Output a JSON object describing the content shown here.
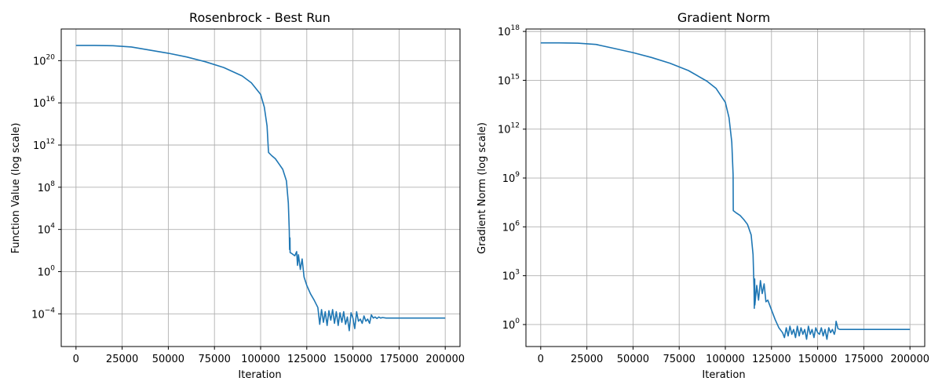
{
  "chart_data": [
    {
      "type": "line",
      "title": "Rosenbrock - Best Run",
      "xlabel": "Iteration",
      "ylabel": "Function Value (log scale)",
      "yscale": "log",
      "grid": true,
      "xlim": [
        -8000,
        208000
      ],
      "ylim_log10": [
        -7.1,
        23.0
      ],
      "xticks": [
        {
          "value": 0,
          "label": "0"
        },
        {
          "value": 25000,
          "label": "25000"
        },
        {
          "value": 50000,
          "label": "50000"
        },
        {
          "value": 75000,
          "label": "75000"
        },
        {
          "value": 100000,
          "label": "100000"
        },
        {
          "value": 125000,
          "label": "125000"
        },
        {
          "value": 150000,
          "label": "150000"
        },
        {
          "value": 175000,
          "label": "175000"
        },
        {
          "value": 200000,
          "label": "200000"
        }
      ],
      "yticks": [
        {
          "exp": 20,
          "base": "10",
          "sup": "20"
        },
        {
          "exp": 16,
          "base": "10",
          "sup": "16"
        },
        {
          "exp": 12,
          "base": "10",
          "sup": "12"
        },
        {
          "exp": 8,
          "base": "10",
          "sup": "8"
        },
        {
          "exp": 4,
          "base": "10",
          "sup": "4"
        },
        {
          "exp": 0,
          "base": "10",
          "sup": "0"
        },
        {
          "exp": -4,
          "base": "10",
          "sup": "−4"
        }
      ],
      "series": [
        {
          "x": [
            0,
            10000,
            20000,
            30000,
            40000,
            50000,
            60000,
            70000,
            80000,
            90000,
            95000,
            100000,
            102000,
            103500,
            104200,
            104300,
            106000,
            108000,
            110000,
            112000,
            114000,
            115000,
            115500,
            115700,
            115900,
            116000,
            117000,
            118500,
            119500,
            120000,
            120500,
            121500,
            122500,
            123500,
            125000,
            127000,
            129000,
            131000,
            132000,
            133000,
            134000,
            135000,
            136000,
            137000,
            138000,
            139000,
            140000,
            141000,
            142000,
            143000,
            144000,
            145000,
            146000,
            147000,
            148000,
            149000,
            150000,
            151000,
            152000,
            153000,
            154000,
            155000,
            156000,
            157000,
            158000,
            159000,
            160000,
            161000,
            162000,
            163000,
            164000,
            165000,
            166000,
            168000,
            170000,
            175000,
            180000,
            190000,
            200000
          ],
          "y_log10": [
            21.45,
            21.45,
            21.42,
            21.3,
            21.0,
            20.7,
            20.35,
            19.9,
            19.35,
            18.55,
            17.9,
            16.8,
            15.6,
            13.8,
            11.5,
            11.3,
            11.0,
            10.7,
            10.2,
            9.7,
            8.6,
            6.5,
            3.9,
            2.1,
            3.2,
            1.8,
            1.7,
            1.5,
            1.9,
            0.6,
            1.6,
            0.2,
            1.2,
            -0.5,
            -1.3,
            -2.1,
            -2.7,
            -3.4,
            -5.0,
            -3.6,
            -4.8,
            -3.8,
            -5.1,
            -3.7,
            -4.6,
            -3.6,
            -4.9,
            -3.8,
            -5.1,
            -3.9,
            -4.8,
            -3.8,
            -5.0,
            -4.3,
            -5.6,
            -3.9,
            -4.4,
            -5.4,
            -3.8,
            -4.7,
            -4.5,
            -4.9,
            -4.2,
            -4.7,
            -4.5,
            -4.9,
            -4.1,
            -4.4,
            -4.3,
            -4.45,
            -4.3,
            -4.4,
            -4.35,
            -4.4,
            -4.4,
            -4.4,
            -4.4,
            -4.4,
            -4.4
          ]
        }
      ]
    },
    {
      "type": "line",
      "title": "Gradient Norm",
      "xlabel": "Iteration",
      "ylabel": "Gradient Norm (log scale)",
      "yscale": "log",
      "grid": true,
      "xlim": [
        -8000,
        208000
      ],
      "ylim_log10": [
        -1.35,
        18.15
      ],
      "xticks": [
        {
          "value": 0,
          "label": "0"
        },
        {
          "value": 25000,
          "label": "25000"
        },
        {
          "value": 50000,
          "label": "50000"
        },
        {
          "value": 75000,
          "label": "75000"
        },
        {
          "value": 100000,
          "label": "100000"
        },
        {
          "value": 125000,
          "label": "125000"
        },
        {
          "value": 150000,
          "label": "150000"
        },
        {
          "value": 175000,
          "label": "175000"
        },
        {
          "value": 200000,
          "label": "200000"
        }
      ],
      "yticks": [
        {
          "exp": 18,
          "base": "10",
          "sup": "18"
        },
        {
          "exp": 15,
          "base": "10",
          "sup": "15"
        },
        {
          "exp": 12,
          "base": "10",
          "sup": "12"
        },
        {
          "exp": 9,
          "base": "10",
          "sup": "9"
        },
        {
          "exp": 6,
          "base": "10",
          "sup": "6"
        },
        {
          "exp": 3,
          "base": "10",
          "sup": "3"
        },
        {
          "exp": 0,
          "base": "10",
          "sup": "0"
        }
      ],
      "series": [
        {
          "x": [
            0,
            10000,
            20000,
            30000,
            40000,
            50000,
            60000,
            70000,
            80000,
            90000,
            95000,
            100000,
            102000,
            103500,
            104200,
            104300,
            106000,
            108000,
            110000,
            112000,
            114000,
            115000,
            115500,
            115700,
            115900,
            116000,
            117000,
            118000,
            119000,
            120000,
            121000,
            122000,
            123000,
            125000,
            127000,
            129000,
            131000,
            132000,
            133000,
            134000,
            135000,
            136000,
            137000,
            138000,
            139000,
            140000,
            141000,
            142000,
            143000,
            144000,
            145000,
            146000,
            147000,
            148000,
            149000,
            150000,
            151000,
            152000,
            153000,
            154000,
            155000,
            156000,
            157000,
            158000,
            159000,
            159500,
            160000,
            161000,
            162000,
            165000,
            170000,
            175000,
            180000,
            190000,
            200000
          ],
          "y_log10": [
            17.3,
            17.3,
            17.28,
            17.2,
            16.95,
            16.7,
            16.4,
            16.05,
            15.6,
            14.95,
            14.5,
            13.65,
            12.7,
            11.2,
            9.2,
            7.0,
            6.85,
            6.7,
            6.45,
            6.15,
            5.5,
            4.3,
            2.3,
            1.0,
            2.8,
            1.2,
            2.4,
            1.5,
            2.7,
            1.9,
            2.5,
            1.4,
            1.5,
            0.9,
            0.3,
            -0.2,
            -0.5,
            -0.8,
            -0.2,
            -0.7,
            -0.1,
            -0.6,
            -0.3,
            -0.8,
            -0.1,
            -0.7,
            -0.2,
            -0.6,
            -0.3,
            -0.9,
            -0.1,
            -0.6,
            -0.3,
            -0.8,
            -0.2,
            -0.5,
            -0.6,
            -0.2,
            -0.7,
            -0.3,
            -0.9,
            -0.2,
            -0.5,
            -0.3,
            -0.6,
            -0.4,
            0.2,
            -0.25,
            -0.3,
            -0.3,
            -0.3,
            -0.3,
            -0.3,
            -0.3,
            -0.3
          ]
        }
      ]
    }
  ]
}
